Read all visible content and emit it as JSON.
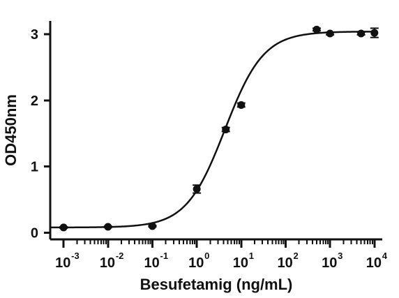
{
  "chart_data": {
    "type": "scatter",
    "title": "",
    "xlabel": "Besufetamig (ng/mL)",
    "ylabel": "OD450nm",
    "x_scale": "log",
    "xlim": [
      0.0005,
      15000
    ],
    "ylim": [
      -0.1,
      3.2
    ],
    "grid": false,
    "legend": "none",
    "x_ticks": [
      {
        "value": 0.001,
        "base": "10",
        "exponent": "-3"
      },
      {
        "value": 0.01,
        "base": "10",
        "exponent": "-2"
      },
      {
        "value": 0.1,
        "base": "10",
        "exponent": "-1"
      },
      {
        "value": 1,
        "base": "10",
        "exponent": "0"
      },
      {
        "value": 10,
        "base": "10",
        "exponent": "1"
      },
      {
        "value": 100,
        "base": "10",
        "exponent": "2"
      },
      {
        "value": 1000,
        "base": "10",
        "exponent": "3"
      },
      {
        "value": 10000,
        "base": "10",
        "exponent": "4"
      }
    ],
    "y_ticks": [
      {
        "value": 0,
        "label": "0"
      },
      {
        "value": 1,
        "label": "1"
      },
      {
        "value": 2,
        "label": "2"
      },
      {
        "value": 3,
        "label": "3"
      }
    ],
    "series": [
      {
        "points": [
          {
            "x": 0.001,
            "y": 0.08,
            "err": 0.01
          },
          {
            "x": 0.01,
            "y": 0.09,
            "err": 0.01
          },
          {
            "x": 0.1,
            "y": 0.1,
            "err": 0.01
          },
          {
            "x": 1,
            "y": 0.66,
            "err": 0.06
          },
          {
            "x": 4.5,
            "y": 1.56,
            "err": 0.03
          },
          {
            "x": 10,
            "y": 1.93,
            "err": 0.03
          },
          {
            "x": 500,
            "y": 3.07,
            "err": 0.02
          },
          {
            "x": 1000,
            "y": 3.01,
            "err": 0.02
          },
          {
            "x": 5000,
            "y": 3.01,
            "err": 0.02
          },
          {
            "x": 10000,
            "y": 3.02,
            "err": 0.07
          }
        ],
        "fit": {
          "model": "4PL",
          "bottom": 0.08,
          "top": 3.04,
          "ec50": 4.3,
          "hill": 1.0
        }
      }
    ]
  }
}
